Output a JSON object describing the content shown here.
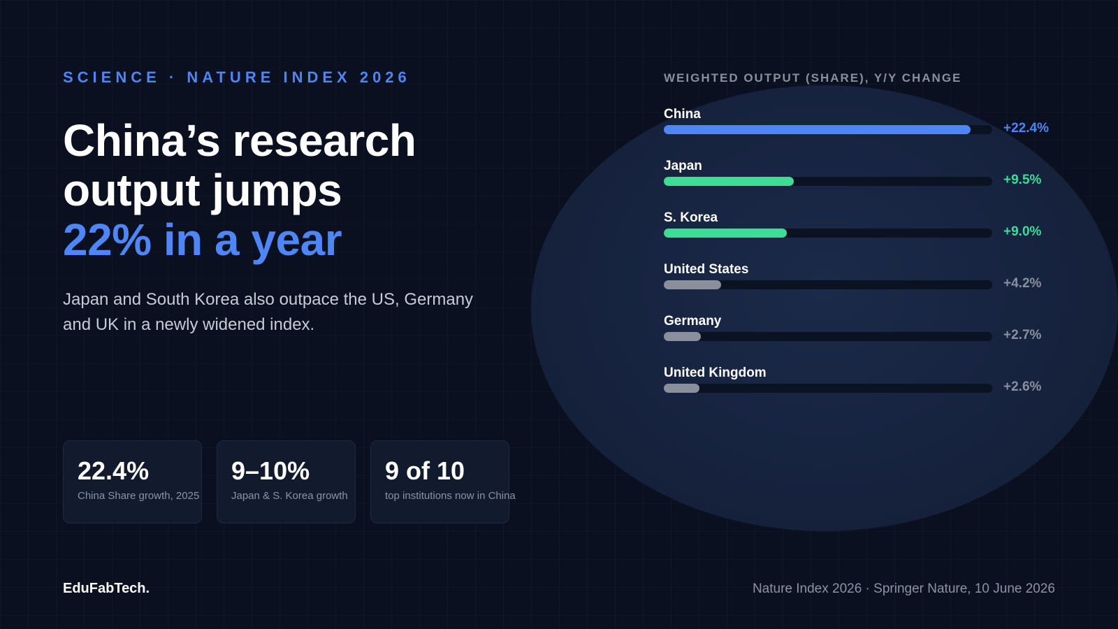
{
  "kicker": "SCIENCE · NATURE INDEX 2026",
  "headline": {
    "line1": "China’s research",
    "line2": "output jumps",
    "accent": "22% in a year"
  },
  "subtitle": "Japan and South Korea also outpace the US, Germany and UK in a newly widened index.",
  "stats": [
    {
      "value": "22.4%",
      "label": "China Share growth, 2025"
    },
    {
      "value": "9–10%",
      "label": "Japan & S. Korea growth"
    },
    {
      "value": "9 of 10",
      "label": "top institutions now in China"
    }
  ],
  "colors": {
    "accent": "#4f86f7",
    "green": "#3ddc97",
    "muted": "#8a8f9c",
    "background": "#0b1020"
  },
  "chart_data": {
    "type": "bar",
    "orientation": "horizontal",
    "title": "WEIGHTED OUTPUT (SHARE), Y/Y CHANGE",
    "categories": [
      "China",
      "Japan",
      "S. Korea",
      "United States",
      "Germany",
      "United Kingdom"
    ],
    "values": [
      22.4,
      9.5,
      9.0,
      4.2,
      2.7,
      2.6
    ],
    "value_labels": [
      "+22.4%",
      "+9.5%",
      "+9.0%",
      "+4.2%",
      "+2.7%",
      "+2.6%"
    ],
    "bar_colors": [
      "#4f86f7",
      "#3ddc97",
      "#3ddc97",
      "#8a8f9c",
      "#8a8f9c",
      "#8a8f9c"
    ],
    "label_colors": [
      "#4f86f7",
      "#3ddc97",
      "#3ddc97",
      "#8a8f9c",
      "#8a8f9c",
      "#8a8f9c"
    ],
    "xlim": [
      0,
      24
    ],
    "grid": false,
    "legend": false
  },
  "footer": {
    "brand": "EduFabTech.",
    "source": "Nature Index 2026 · Springer Nature, 10 June 2026"
  }
}
